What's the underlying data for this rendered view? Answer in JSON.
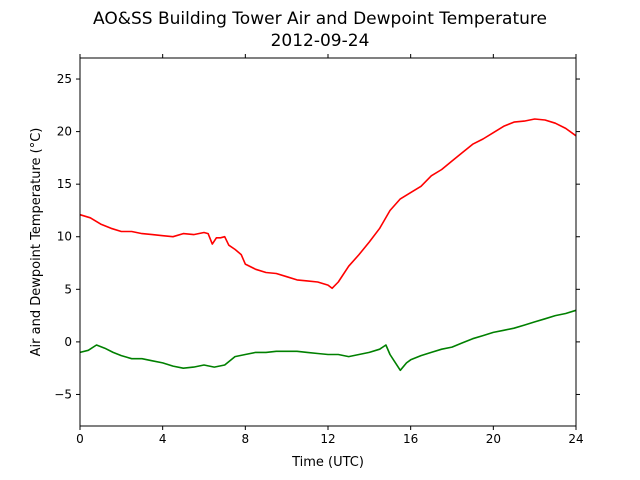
{
  "chart_data": {
    "type": "line",
    "title": "AO&SS Building Tower Air and Dewpoint Temperature",
    "subtitle": "2012-09-24",
    "xlabel": "Time (UTC)",
    "ylabel": "Air and Dewpoint Temperature (°C)",
    "xlim": [
      0,
      24
    ],
    "ylim": [
      -8,
      27
    ],
    "xticks": [
      0,
      4,
      8,
      12,
      16,
      20,
      24
    ],
    "yticks": [
      -5,
      0,
      5,
      10,
      15,
      20,
      25
    ],
    "grid": false,
    "series": [
      {
        "color": "#ff0000",
        "x": [
          0,
          0.5,
          1,
          1.5,
          2,
          2.5,
          3,
          3.5,
          4,
          4.5,
          5,
          5.5,
          6,
          6.2,
          6.4,
          6.6,
          6.8,
          7,
          7.2,
          7.5,
          7.8,
          8,
          8.5,
          9,
          9.5,
          10,
          10.5,
          11,
          11.5,
          12,
          12.2,
          12.5,
          13,
          13.5,
          14,
          14.5,
          15,
          15.5,
          16,
          16.5,
          17,
          17.5,
          18,
          18.5,
          19,
          19.5,
          20,
          20.5,
          21,
          21.5,
          22,
          22.5,
          23,
          23.5,
          24
        ],
        "values": [
          12.1,
          11.8,
          11.2,
          10.8,
          10.5,
          10.5,
          10.3,
          10.2,
          10.1,
          10.0,
          10.3,
          10.2,
          10.4,
          10.3,
          9.3,
          9.9,
          9.9,
          10.0,
          9.2,
          8.8,
          8.3,
          7.4,
          6.9,
          6.6,
          6.5,
          6.2,
          5.9,
          5.8,
          5.7,
          5.4,
          5.1,
          5.7,
          7.2,
          8.3,
          9.5,
          10.8,
          12.5,
          13.6,
          14.2,
          14.8,
          15.8,
          16.4,
          17.2,
          18.0,
          18.8,
          19.3,
          19.9,
          20.5,
          20.9,
          21.0,
          21.2,
          21.1,
          20.8,
          20.3,
          19.6
        ]
      },
      {
        "color": "#008000",
        "x": [
          0,
          0.4,
          0.8,
          1.2,
          1.6,
          2,
          2.5,
          3,
          3.5,
          4,
          4.5,
          5,
          5.5,
          6,
          6.5,
          7,
          7.5,
          8,
          8.5,
          9,
          9.5,
          10,
          10.5,
          11,
          11.5,
          12,
          12.5,
          13,
          13.5,
          14,
          14.5,
          14.8,
          15,
          15.2,
          15.5,
          15.8,
          16,
          16.5,
          17,
          17.5,
          18,
          18.5,
          19,
          19.5,
          20,
          20.5,
          21,
          21.5,
          22,
          22.5,
          23,
          23.5,
          24
        ],
        "values": [
          -1.0,
          -0.8,
          -0.3,
          -0.6,
          -1.0,
          -1.3,
          -1.6,
          -1.6,
          -1.8,
          -2.0,
          -2.3,
          -2.5,
          -2.4,
          -2.2,
          -2.4,
          -2.2,
          -1.4,
          -1.2,
          -1.0,
          -1.0,
          -0.9,
          -0.9,
          -0.9,
          -1.0,
          -1.1,
          -1.2,
          -1.2,
          -1.4,
          -1.2,
          -1.0,
          -0.7,
          -0.3,
          -1.2,
          -1.8,
          -2.7,
          -2.0,
          -1.7,
          -1.3,
          -1.0,
          -0.7,
          -0.5,
          -0.1,
          0.3,
          0.6,
          0.9,
          1.1,
          1.3,
          1.6,
          1.9,
          2.2,
          2.5,
          2.7,
          3.0
        ]
      }
    ]
  }
}
